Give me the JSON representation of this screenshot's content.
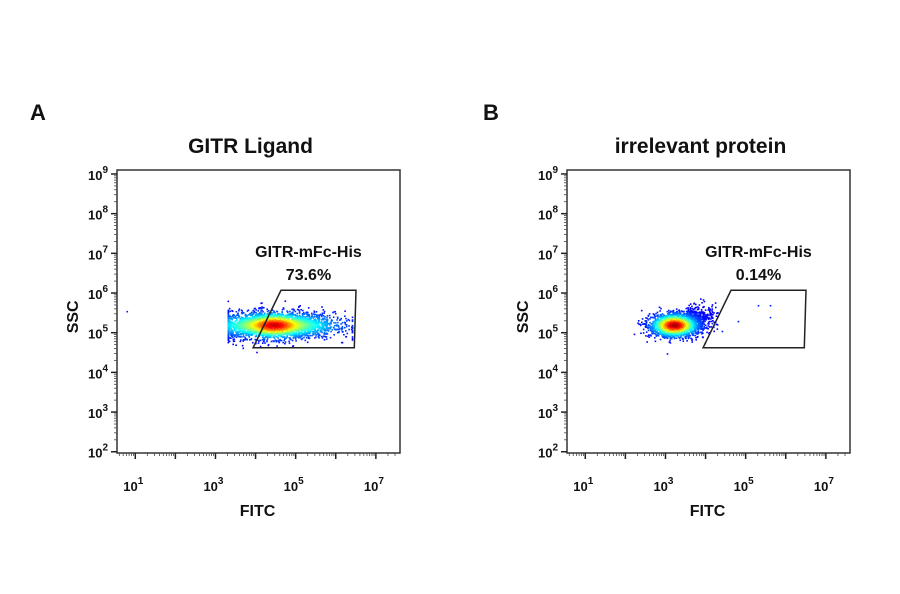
{
  "chart_data": [
    {
      "type": "scatter",
      "panel_label": "A",
      "title": "GITR Ligand",
      "xlabel": "FITC",
      "ylabel": "SSC",
      "x_scale": "log",
      "y_scale": "log",
      "xlim": [
        3.5,
        40000000
      ],
      "ylim": [
        93,
        1260000000
      ],
      "x_tick_labels": [
        "10^1",
        "10^3",
        "10^5",
        "10^7"
      ],
      "y_tick_labels": [
        "10^2",
        "10^3",
        "10^4",
        "10^5",
        "10^6",
        "10^7",
        "10^8",
        "10^9"
      ],
      "grid": false,
      "colormap": "jet density",
      "population": {
        "x_center": 28000,
        "y_center": 160000,
        "x_spread_decades": 0.75,
        "y_spread_decades": 0.17,
        "x_range": [
          2000,
          2500000
        ]
      },
      "gate": {
        "name": "GITR-mFc-His",
        "percent": "73.6%",
        "vertices": [
          [
            8700,
            42000
          ],
          [
            43000,
            1170000
          ],
          [
            3200000,
            1170000
          ],
          [
            2900000,
            42000
          ]
        ]
      }
    },
    {
      "type": "scatter",
      "panel_label": "B",
      "title": "irrelevant protein",
      "xlabel": "FITC",
      "ylabel": "SSC",
      "x_scale": "log",
      "y_scale": "log",
      "xlim": [
        3.5,
        40000000
      ],
      "ylim": [
        93,
        1260000000
      ],
      "x_tick_labels": [
        "10^1",
        "10^3",
        "10^5",
        "10^7"
      ],
      "y_tick_labels": [
        "10^2",
        "10^3",
        "10^4",
        "10^5",
        "10^6",
        "10^7",
        "10^8",
        "10^9"
      ],
      "grid": false,
      "colormap": "jet density",
      "population": {
        "x_center": 1600,
        "y_center": 160000,
        "x_spread_decades": 0.3,
        "y_spread_decades": 0.15,
        "x_range": [
          300,
          20000
        ]
      },
      "gate": {
        "name": "GITR-mFc-His",
        "percent": "0.14%",
        "vertices": [
          [
            8700,
            42000
          ],
          [
            43000,
            1170000
          ],
          [
            3200000,
            1170000
          ],
          [
            2900000,
            42000
          ]
        ]
      }
    }
  ]
}
